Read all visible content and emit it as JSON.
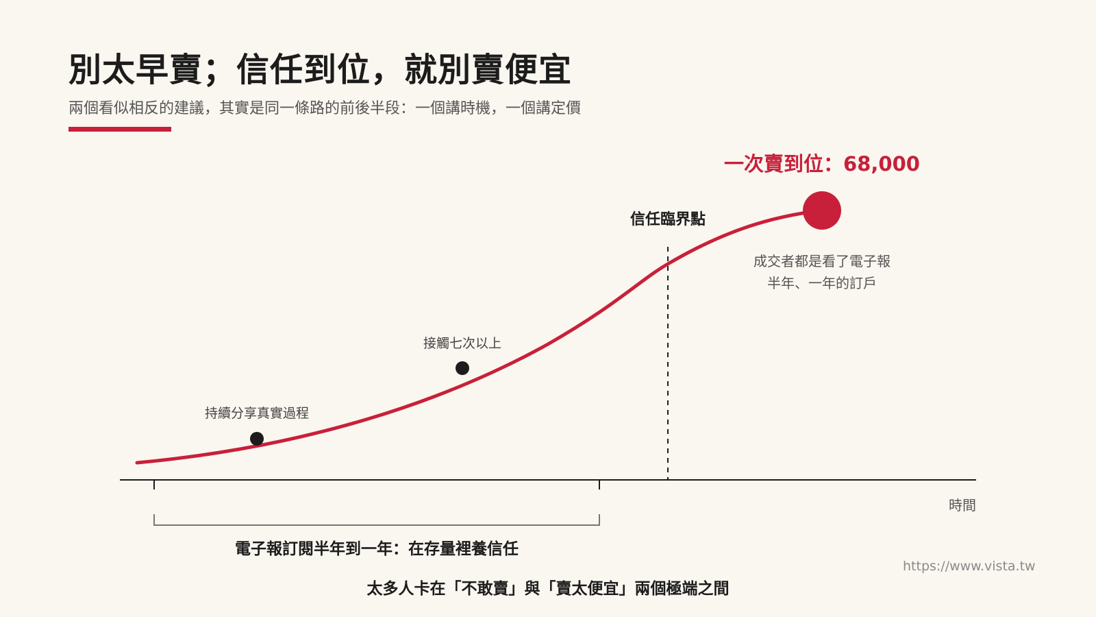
{
  "title": "別太早賣；信任到位，就別賣便宜",
  "subtitle": "兩個看似相反的建議，其實是同一條路的前後半段：一個講時機，一個講定價",
  "colors": {
    "accent": "#c8203a",
    "text": "#1c1c1c",
    "muted": "#555555",
    "background": "#faf6f0"
  },
  "diagram": {
    "milestones": [
      {
        "label": "持續分享真實過程"
      },
      {
        "label": "接觸七次以上"
      }
    ],
    "threshold_label": "信任臨界點",
    "peak_label": "一次賣到位：68,000",
    "peak_note_line1": "成交者都是看了電子報",
    "peak_note_line2": "半年、一年的訂戶",
    "x_axis_label": "時間",
    "bracket_label": "電子報訂閱半年到一年：在存量裡養信任"
  },
  "footer": "太多人卡在「不敢賣」與「賣太便宜」兩個極端之間",
  "watermark": "https://www.vista.tw"
}
